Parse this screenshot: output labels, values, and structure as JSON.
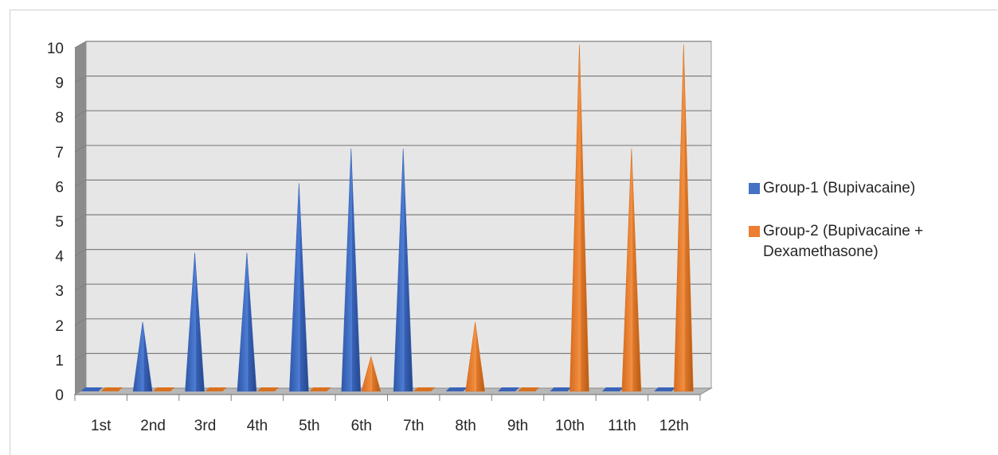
{
  "chart_data": {
    "type": "bar",
    "title": "",
    "xlabel": "",
    "ylabel": "",
    "categories": [
      "1st",
      "2nd",
      "3rd",
      "4th",
      "5th",
      "6th",
      "7th",
      "8th",
      "9th",
      "10th",
      "11th",
      "12th"
    ],
    "y_ticks": [
      "0",
      "1",
      "2",
      "3",
      "4",
      "5",
      "6",
      "7",
      "8",
      "9",
      "10"
    ],
    "ylim": [
      0,
      10
    ],
    "grid": true,
    "legend_position": "right",
    "series": [
      {
        "name": "Group-1 (Bupivacaine)",
        "color": "#4472C4",
        "values": [
          0,
          2,
          4,
          4,
          6,
          7,
          7,
          0,
          0,
          0,
          0,
          0
        ]
      },
      {
        "name": "Group-2 (Bupivacaine + Dexamethasone)",
        "color": "#ED7D31",
        "values": [
          0,
          0,
          0,
          0,
          0,
          1,
          0,
          2,
          0,
          10,
          7,
          10
        ]
      }
    ]
  }
}
